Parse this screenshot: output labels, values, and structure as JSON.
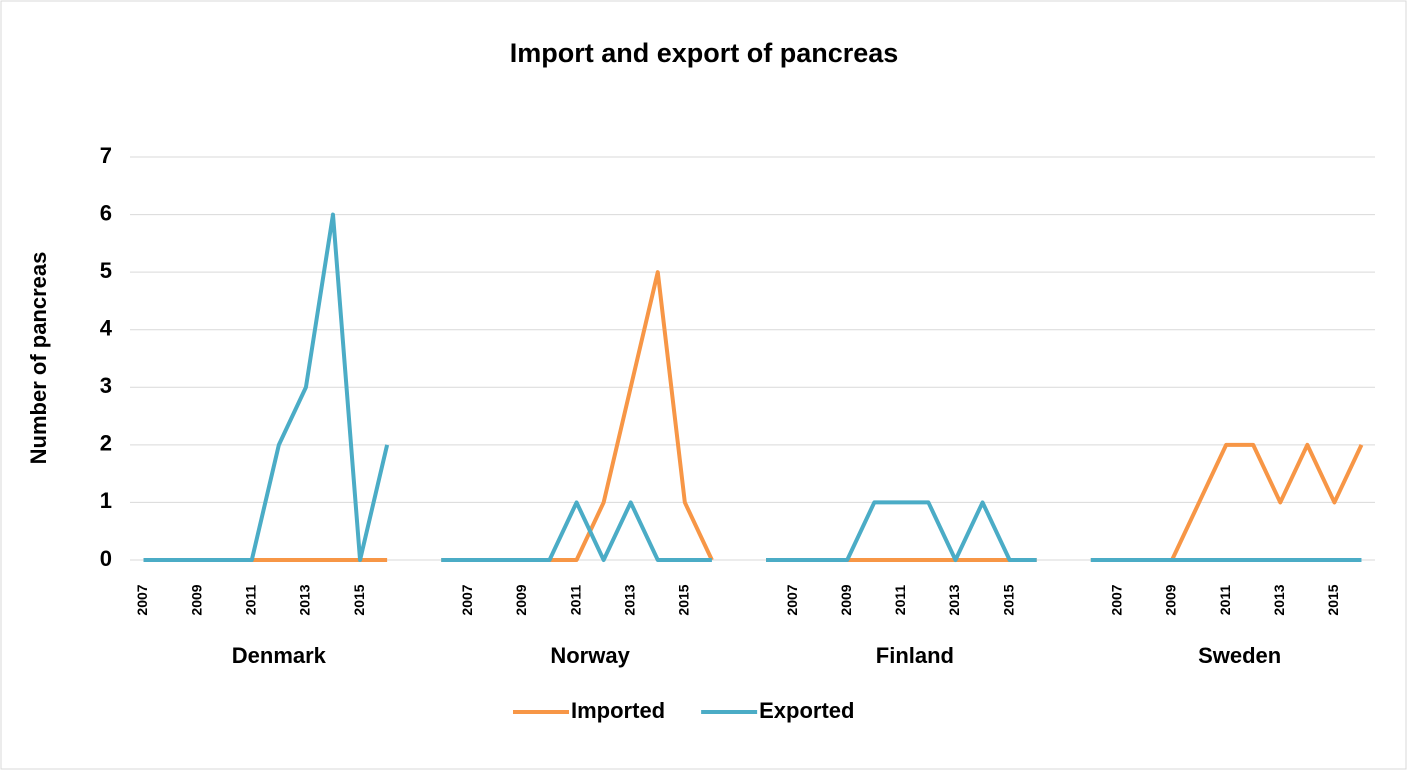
{
  "chart_data": {
    "type": "line",
    "title": "Import and export of pancreas",
    "y_label": "Number of pancreas",
    "ylim": [
      0,
      7
    ],
    "yticks": [
      0,
      1,
      2,
      3,
      4,
      5,
      6,
      7
    ],
    "grid": true,
    "legend": "bottom",
    "groups": [
      {
        "name": "Denmark",
        "categories": [
          "2007",
          null,
          "2009",
          null,
          "2011",
          null,
          "2013",
          null,
          "2015",
          null
        ]
      },
      {
        "name": "Norway",
        "categories": [
          null,
          "2007",
          null,
          "2009",
          null,
          "2011",
          null,
          "2013",
          null,
          "2015",
          null
        ]
      },
      {
        "name": "Finland",
        "categories": [
          null,
          "2007",
          null,
          "2009",
          null,
          "2011",
          null,
          "2013",
          null,
          "2015",
          null
        ]
      },
      {
        "name": "Sweden",
        "categories": [
          null,
          "2007",
          null,
          "2009",
          null,
          "2011",
          null,
          "2013",
          null,
          "2015",
          null
        ]
      }
    ],
    "series": [
      {
        "name": "Imported",
        "color": "#f79646",
        "values": [
          [
            0,
            0,
            0,
            0,
            0,
            0,
            0,
            0,
            0,
            0
          ],
          [
            0,
            0,
            0,
            0,
            0,
            0,
            1,
            3,
            5,
            1,
            0
          ],
          [
            0,
            0,
            0,
            0,
            0,
            0,
            0,
            0,
            0,
            0,
            0
          ],
          [
            0,
            0,
            0,
            0,
            1,
            2,
            2,
            1,
            2,
            1,
            2
          ]
        ]
      },
      {
        "name": "Exported",
        "color": "#4bacc6",
        "values": [
          [
            0,
            0,
            0,
            0,
            0,
            2,
            3,
            6,
            0,
            2
          ],
          [
            0,
            0,
            0,
            0,
            0,
            1,
            0,
            1,
            0,
            0,
            0
          ],
          [
            0,
            0,
            0,
            0,
            1,
            1,
            1,
            0,
            1,
            0,
            0
          ],
          [
            0,
            0,
            0,
            0,
            0,
            0,
            0,
            0,
            0,
            0,
            0
          ]
        ]
      }
    ]
  }
}
